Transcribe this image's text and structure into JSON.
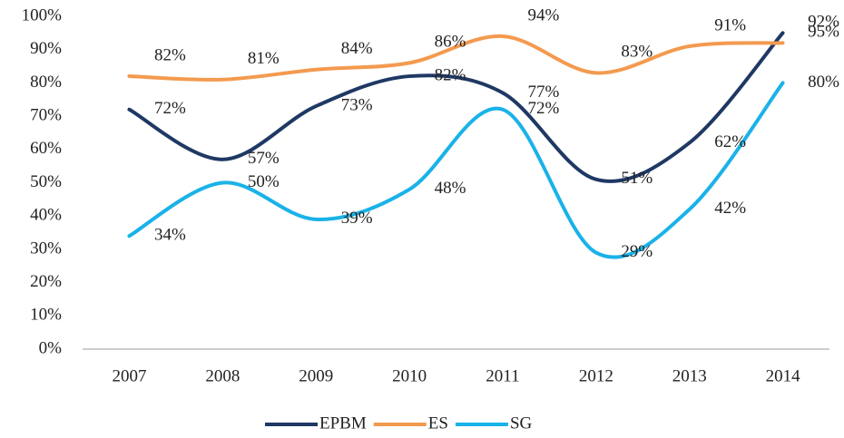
{
  "chart_data": {
    "type": "line",
    "categories": [
      "2007",
      "2008",
      "2009",
      "2010",
      "2011",
      "2012",
      "2013",
      "2014"
    ],
    "series": [
      {
        "name": "EPBM",
        "color": "#1f3864",
        "values": [
          72,
          57,
          73,
          82,
          77,
          51,
          62,
          95
        ],
        "value_labels": [
          "72%",
          "57%",
          "73%",
          "82%",
          "77%",
          "51%",
          "62%",
          "95%"
        ]
      },
      {
        "name": "ES",
        "color": "#f39a4f",
        "values": [
          82,
          81,
          84,
          86,
          94,
          83,
          91,
          92
        ],
        "value_labels": [
          "82%",
          "81%",
          "84%",
          "86%",
          "94%",
          "83%",
          "91%",
          "92%"
        ]
      },
      {
        "name": "SG",
        "color": "#1ab2e8",
        "values": [
          34,
          50,
          39,
          48,
          72,
          29,
          42,
          80
        ],
        "value_labels": [
          "34%",
          "50%",
          "39%",
          "48%",
          "72%",
          "29%",
          "42%",
          "80%"
        ]
      }
    ],
    "ylim": [
      0,
      100
    ],
    "yticks": [
      {
        "value": 0,
        "label": "0%"
      },
      {
        "value": 10,
        "label": "10%"
      },
      {
        "value": 20,
        "label": "20%"
      },
      {
        "value": 30,
        "label": "30%"
      },
      {
        "value": 40,
        "label": "40%"
      },
      {
        "value": 50,
        "label": "50%"
      },
      {
        "value": 60,
        "label": "60%"
      },
      {
        "value": 70,
        "label": "70%"
      },
      {
        "value": 80,
        "label": "80%"
      },
      {
        "value": 90,
        "label": "90%"
      },
      {
        "value": 100,
        "label": "100%"
      }
    ],
    "legend": "bottom"
  }
}
